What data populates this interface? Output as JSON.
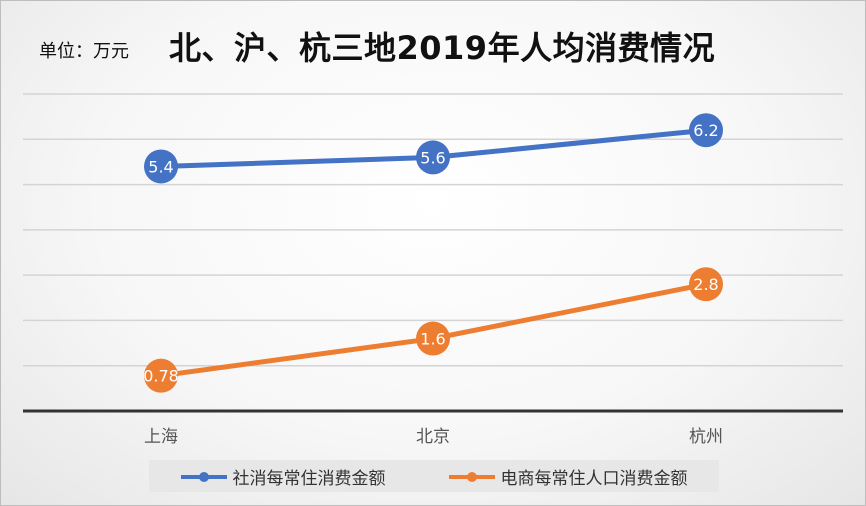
{
  "unit_label": "单位：万元",
  "chart_data": {
    "type": "line",
    "title": "北、沪、杭三地2019年人均消费情况",
    "categories": [
      "上海",
      "北京",
      "杭州"
    ],
    "series": [
      {
        "name": "社消每常住消费金额",
        "values": [
          5.4,
          5.6,
          6.2
        ],
        "labels": [
          "5.4",
          "5.6",
          "6.2"
        ],
        "color": "#4472C4"
      },
      {
        "name": "电商每常住人口消费金额",
        "values": [
          0.78,
          1.6,
          2.8
        ],
        "labels": [
          "0.78",
          "1.6",
          "2.8"
        ],
        "color": "#ED7D31"
      }
    ],
    "ylim": [
      0,
      7
    ],
    "grid": true,
    "legend_position": "bottom"
  }
}
